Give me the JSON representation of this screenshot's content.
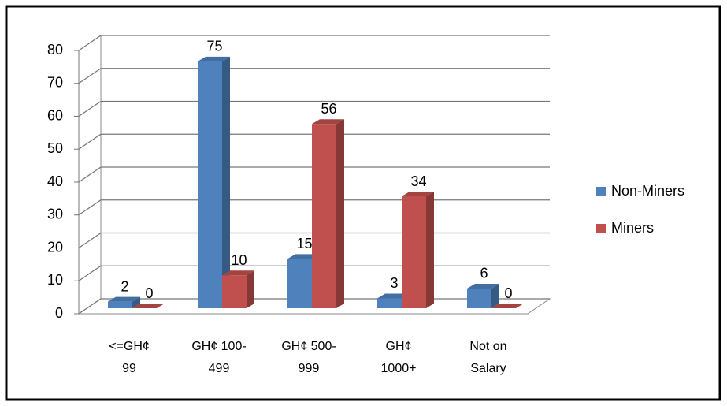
{
  "chart_data": {
    "type": "bar3d",
    "categories": [
      "<=GH¢ 99",
      "GH¢ 100-499",
      "GH¢ 500-999",
      "GH¢ 1000+",
      "Not on Salary"
    ],
    "series": [
      {
        "name": "Non-Miners",
        "color": "#4f81bd",
        "values": [
          2,
          75,
          15,
          3,
          6
        ]
      },
      {
        "name": "Miners",
        "color": "#c0504d",
        "values": [
          0,
          10,
          56,
          34,
          0
        ]
      }
    ],
    "ylim": [
      0,
      80
    ],
    "yticks": [
      0,
      10,
      20,
      30,
      40,
      50,
      60,
      70,
      80
    ],
    "grid": true,
    "legend": "right"
  }
}
